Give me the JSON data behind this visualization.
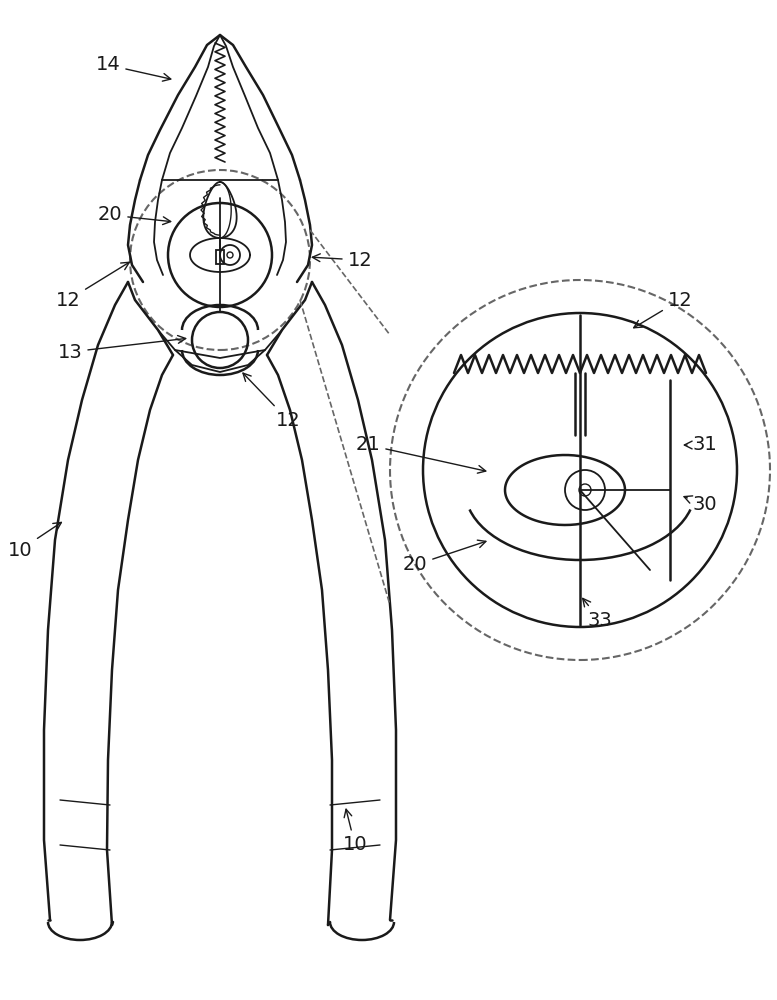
{
  "bg_color": "#ffffff",
  "line_color": "#1a1a1a",
  "dash_color": "#666666",
  "label_color": "#1a1a1a",
  "figsize": [
    7.77,
    10.0
  ],
  "dpi": 100
}
